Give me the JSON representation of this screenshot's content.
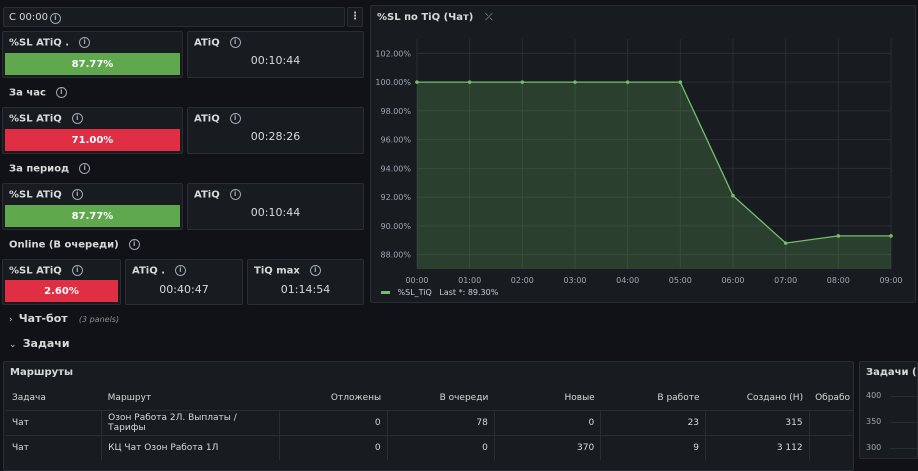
{
  "top": {
    "var_label": "С 00:00"
  },
  "rows": [
    {
      "label": ""
    },
    {
      "label": "За час"
    },
    {
      "label": "За период"
    },
    {
      "label": "Online (В очереди)"
    }
  ],
  "stats": [
    {
      "title": "%SL ATiQ .",
      "value": "87.77%",
      "color": "#5fa84d"
    },
    {
      "title": "ATiQ",
      "value": "00:10:44"
    },
    {
      "title": "%SL ATiQ",
      "value": "71.00%",
      "color": "#e02f44"
    },
    {
      "title": "ATiQ",
      "value": "00:28:26"
    },
    {
      "title": "%SL ATiQ",
      "value": "87.77%",
      "color": "#5fa84d"
    },
    {
      "title": "ATiQ",
      "value": "00:10:44"
    },
    {
      "title": "%SL ATiQ",
      "value": "2.60%",
      "color": "#e02f44"
    },
    {
      "title": "ATiQ .",
      "value": "00:40:47"
    },
    {
      "title": "TiQ max",
      "value": "01:14:54"
    }
  ],
  "chart_data": {
    "type": "area",
    "title": "%SL по TiQ (Чат)",
    "x": [
      "00:00",
      "01:00",
      "02:00",
      "03:00",
      "04:00",
      "05:00",
      "06:00",
      "07:00",
      "08:00",
      "09:00"
    ],
    "series": [
      {
        "name": "%SL_TiQ",
        "values": [
          100.0,
          100.0,
          100.0,
          100.0,
          100.0,
          100.0,
          92.1,
          88.8,
          89.3,
          89.3
        ],
        "color": "#73bf69"
      }
    ],
    "yticks": [
      "102.00%",
      "100.00%",
      "98.00%",
      "96.00%",
      "94.00%",
      "92.00%",
      "90.00%",
      "88.00%"
    ],
    "ylim": [
      87.0,
      103.0
    ],
    "grid": true,
    "legend": {
      "name": "%SL_TiQ",
      "last_text": "Last *: 89.30%"
    }
  },
  "collapsed": {
    "title": "Чат-бот",
    "note": "(3 panels)"
  },
  "section": {
    "title": "Задачи"
  },
  "table": {
    "title": "Маршруты",
    "headers": [
      "Задача",
      "Маршрут",
      "Отложены",
      "В очереди",
      "Новые",
      "В работе",
      "Создано (Н)",
      "Обрабо"
    ],
    "rows": [
      [
        "Чат",
        "Озон Работа 2Л. Выплаты / Тарифы",
        "0",
        "78",
        "0",
        "23",
        "315",
        ""
      ],
      [
        "Чат",
        "КЦ Чат Озон Работа 1Л",
        "0",
        "0",
        "370",
        "9",
        "3 112",
        ""
      ]
    ]
  },
  "side_panel": {
    "title": "Задачи (Ча",
    "yticks": [
      "400",
      "350",
      "300"
    ]
  }
}
